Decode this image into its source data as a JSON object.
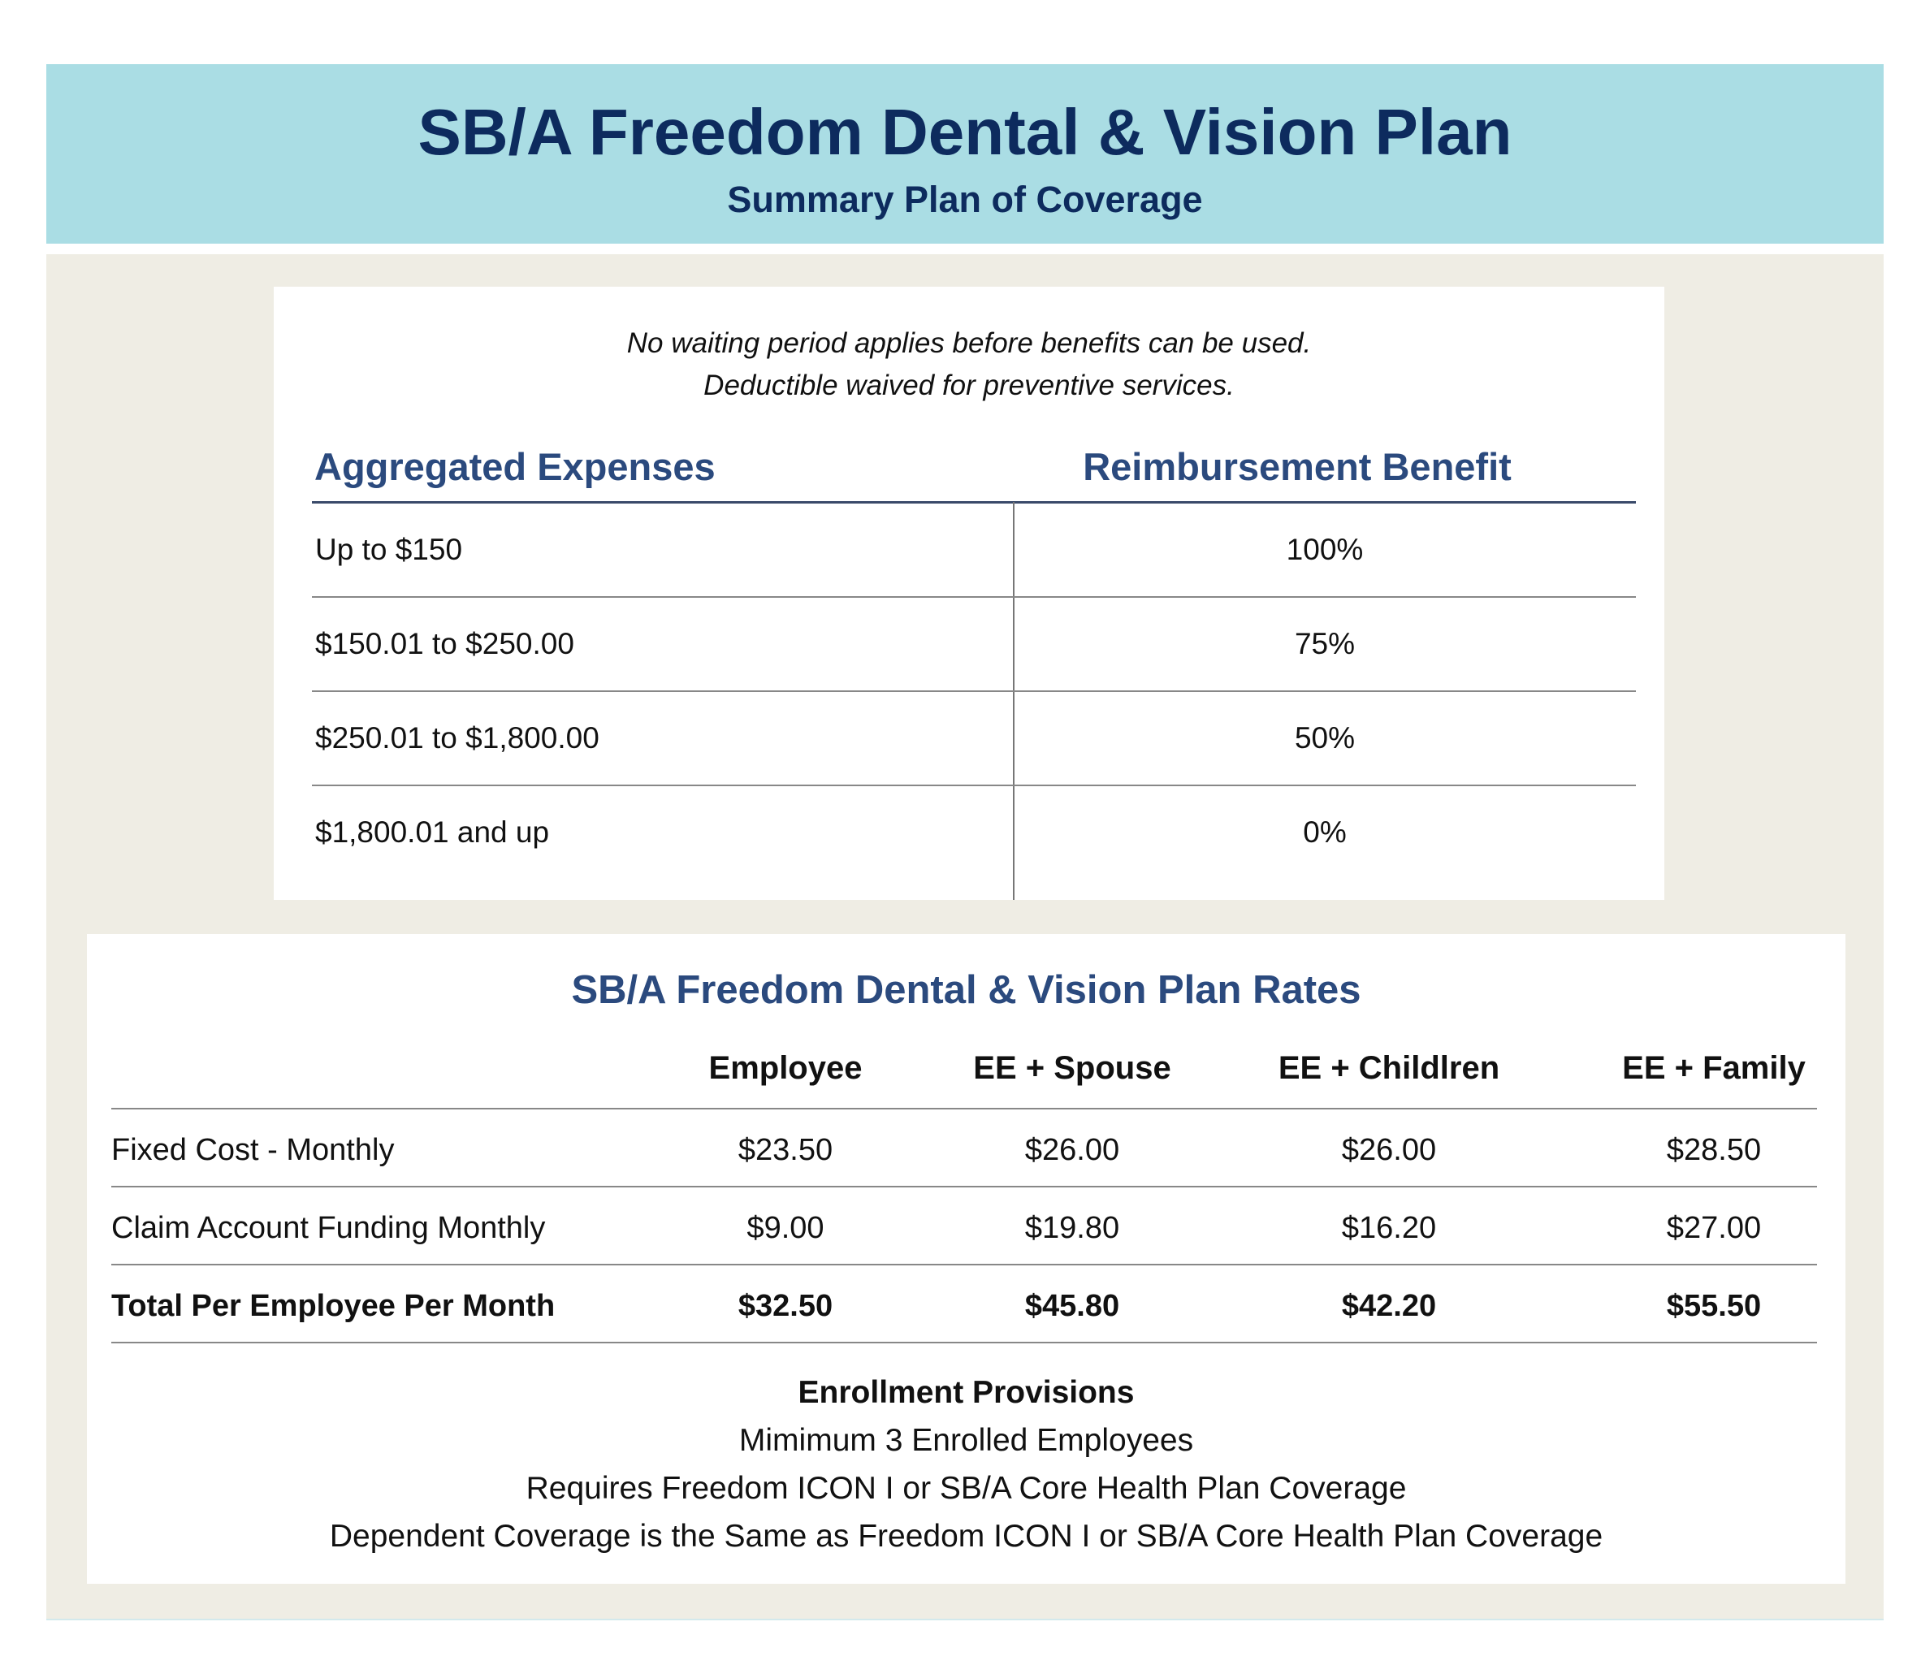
{
  "header": {
    "title": "SB/A Freedom Dental & Vision Plan",
    "subtitle": "Summary Plan of Coverage"
  },
  "coverage": {
    "notes": [
      "No waiting period applies before benefits can be used.",
      "Deductible waived for preventive services."
    ],
    "columns": [
      "Aggregated Expenses",
      "Reimbursement Benefit"
    ],
    "rows": [
      {
        "expense": "Up to $150",
        "benefit": "100%"
      },
      {
        "expense": "$150.01 to $250.00",
        "benefit": "75%"
      },
      {
        "expense": "$250.01 to $1,800.00",
        "benefit": "50%"
      },
      {
        "expense": "$1,800.01 and up",
        "benefit": "0%"
      }
    ]
  },
  "rates": {
    "title": "SB/A Freedom Dental & Vision Plan Rates",
    "columns": [
      "Employee",
      "EE + Spouse",
      "EE + Childlren",
      "EE + Family"
    ],
    "rows": [
      {
        "label": "Fixed Cost - Monthly",
        "values": [
          "$23.50",
          "$26.00",
          "$26.00",
          "$28.50"
        ]
      },
      {
        "label": "Claim Account Funding Monthly",
        "values": [
          "$9.00",
          "$19.80",
          "$16.20",
          "$27.00"
        ]
      },
      {
        "label": "Total Per Employee Per Month",
        "values": [
          "$32.50",
          "$45.80",
          "$42.20",
          "$55.50"
        ]
      }
    ]
  },
  "enrollment": {
    "heading": "Enrollment Provisions",
    "lines": [
      "Mimimum 3 Enrolled Employees",
      "Requires Freedom ICON I or SB/A Core Health Plan Coverage",
      "Dependent Coverage is the Same as Freedom ICON I or SB/A Core Health Plan Coverage"
    ]
  }
}
